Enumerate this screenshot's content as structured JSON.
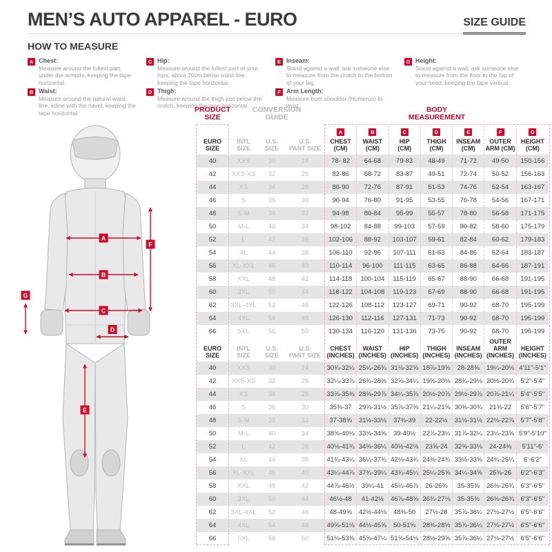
{
  "colors": {
    "accent_red": "#cf0a2c",
    "row_shade": "#e4e4e4",
    "muted_gray": "#b5b5b5",
    "text_dark": "#3a3a3a"
  },
  "header": {
    "title": "MEN’S AUTO APPAREL - EURO",
    "size_guide_label": "SIZE GUIDE"
  },
  "how_to_measure": {
    "title": "HOW TO MEASURE",
    "items": [
      {
        "letter": "A",
        "name": "Chest:",
        "text": "Measure around the fullest part, under the armpits, keeping the tape horizontal.",
        "column": 0
      },
      {
        "letter": "B",
        "name": "Waist:",
        "text": "Measure around the natural waist line, inline with the navel, keeping the tape horizontal.",
        "column": 0
      },
      {
        "letter": "C",
        "name": "Hip:",
        "text": "Measure around the fullest part of your hips, about 20cm below waist line, keeping the tape horizontal.",
        "column": 1
      },
      {
        "letter": "D",
        "name": "Thigh:",
        "text": "Measure around the thigh just below the crotch, keeping the tape horizontal.",
        "column": 1
      },
      {
        "letter": "E",
        "name": "Inseam:",
        "text": "Stand against a wall, ask someone else to measure from the crotch to the bottom of your leg.",
        "column": 2
      },
      {
        "letter": "F",
        "name": "Arm Length:",
        "text": "Measure from shoulder (Humerus) to wrist.",
        "column": 2
      },
      {
        "letter": "G",
        "name": "Height:",
        "text": "Stand against a wall, ask someone else to measure from the floor to the top of your head, keeping the tape vertical.",
        "column": 3
      }
    ]
  },
  "figure": {
    "labels": [
      "A",
      "B",
      "C",
      "D",
      "E",
      "F",
      "G"
    ]
  },
  "table": {
    "group_headers": [
      {
        "label": "PRODUCT\nSIZE",
        "style": "red",
        "span": 1
      },
      {
        "label": "CONVERSION\nGUIDE",
        "style": "gray",
        "span": 3
      },
      {
        "label": "BODY\nMEASUREMENT",
        "style": "red",
        "span": 7
      }
    ],
    "basic_columns": [
      {
        "label": "EURO\nSIZE",
        "style": "dark"
      },
      {
        "label": "INTL\nSIZE",
        "style": "light"
      },
      {
        "label": "U.S.\nSIZE",
        "style": "light"
      },
      {
        "label": "U.S.\nPANT SIZE",
        "style": "light"
      }
    ],
    "measure_columns": [
      {
        "letter": "A",
        "cm": "CHEST\n(CM)",
        "inches": "CHEST\n(INCHES)"
      },
      {
        "letter": "B",
        "cm": "WAIST\n(CM)",
        "inches": "WAIST\n(INCHES)"
      },
      {
        "letter": "C",
        "cm": "HIP\n(CM)",
        "inches": "HIP\n(INCHES)"
      },
      {
        "letter": "D",
        "cm": "THIGH\n(CM)",
        "inches": "THIGH\n(INCHES)"
      },
      {
        "letter": "E",
        "cm": "INSEAM\n(CM)",
        "inches": "INSEAM\n(INCHES)"
      },
      {
        "letter": "F",
        "cm": "OUTER\nARM (CM)",
        "inches": "OUTER ARM\n(INCHES)"
      },
      {
        "letter": "G",
        "cm": "HEIGHT\n(CM)",
        "inches": "HEIGHT\n(INCHES)"
      }
    ],
    "rows_cm": [
      [
        "40",
        "XXS",
        "30",
        "24",
        "78- 82",
        "64-68",
        "79-83",
        "48-49",
        "71-72",
        "49-50",
        "150-156"
      ],
      [
        "42",
        "XXS-XS",
        "32",
        "26",
        "82-86",
        "68-72",
        "83-87",
        "49-51",
        "72-74",
        "50-52",
        "156-163"
      ],
      [
        "44",
        "XS",
        "34",
        "28",
        "86-90",
        "72-76",
        "87-91",
        "51-53",
        "74-76",
        "52-54",
        "163-167"
      ],
      [
        "46",
        "S",
        "36",
        "30",
        "90-94",
        "76-80",
        "91-95",
        "53-55",
        "76-78",
        "54-56",
        "167-171"
      ],
      [
        "48",
        "S-M",
        "38",
        "32",
        "94-98",
        "80-84",
        "95-99",
        "55-57",
        "78-80",
        "56-58",
        "171-175"
      ],
      [
        "50",
        "M-L",
        "40",
        "34",
        "98-102",
        "84-88",
        "99-103",
        "57-59",
        "80-82",
        "58-60",
        "175-179"
      ],
      [
        "52",
        "L",
        "42",
        "36",
        "102-106",
        "88-92",
        "103-107",
        "59-61",
        "82-84",
        "60-62",
        "179-183"
      ],
      [
        "54",
        "XL",
        "44",
        "38",
        "106-110",
        "92-96",
        "107-111",
        "61-63",
        "84-86",
        "62-64",
        "183-187"
      ],
      [
        "56",
        "XL-XXL",
        "46",
        "40",
        "110-114",
        "96-100",
        "111-115",
        "63-65",
        "86-88",
        "64-66",
        "187-191"
      ],
      [
        "58",
        "XXL",
        "48",
        "42",
        "114-118",
        "100-104",
        "115-119",
        "65-67",
        "88-90",
        "66-68",
        "191-195"
      ],
      [
        "60",
        "3XL",
        "50",
        "44",
        "118-122",
        "104-108",
        "119-123",
        "67-69",
        "88-90",
        "66-68",
        "191-195"
      ],
      [
        "62",
        "3XL-4XL",
        "52",
        "46",
        "122-126",
        "108-112",
        "123-127",
        "69-71",
        "90-92",
        "68-70",
        "195-199"
      ],
      [
        "64",
        "4XL",
        "54",
        "48",
        "126-130",
        "112-116",
        "127-131",
        "71-73",
        "90-92",
        "68-70",
        "195-199"
      ],
      [
        "66",
        "5XL",
        "56",
        "50",
        "130-134",
        "116-120",
        "131-136",
        "73-75",
        "90-92",
        "68-70",
        "195-199"
      ]
    ],
    "rows_inches": [
      [
        "40",
        "XXS",
        "30",
        "24",
        "30¾-32¼",
        "25¼-26¾",
        "31⅛-32⅝",
        "18⅞-19⅝",
        "28-28⅜",
        "19¼-20⅛",
        "4'11\"-5'1\""
      ],
      [
        "42",
        "XXS-XS",
        "32",
        "26",
        "32¼-33⅞",
        "26¾-28⅜",
        "32⅝-34¼",
        "19⅝-20⅛",
        "28¾-29⅛",
        "20⅛-20¾",
        "5'2\"-5'4\""
      ],
      [
        "44",
        "XS",
        "34",
        "28",
        "33⅞-35⅜",
        "28⅜-29⅞",
        "34¼-35⅞",
        "20½-20⅞",
        "29½-29⅞",
        "20⅞-21¼",
        "5'4\"-5'5\""
      ],
      [
        "46",
        "S",
        "36",
        "30",
        "35⅜-37",
        "29⅞-31½",
        "35⅞-37⅜",
        "21¼-21⅝",
        "30⅜-30¾",
        "21⅝-22",
        "5'6\"-5'7\""
      ],
      [
        "48",
        "S-M",
        "38",
        "32",
        "37-38⅝",
        "31½-33⅛",
        "37⅜-39",
        "22-22½",
        "31⅛-31½",
        "22⅛-22⅞",
        "5'7\"-5'8\""
      ],
      [
        "50",
        "M-L",
        "40",
        "34",
        "38⅝-40⅛",
        "33⅛-34⅝",
        "39-40½",
        "22⅞-23¼",
        "31⅞-32¼",
        "23¼-23⅝",
        "5'9\"-5'10\""
      ],
      [
        "52",
        "L",
        "42",
        "36",
        "40⅛-41¾",
        "34⅝-36¼",
        "40½-42⅛",
        "23⅝-24",
        "32⅝-33⅛",
        "24-24⅜",
        "5'11\"-6'"
      ],
      [
        "54",
        "XL",
        "44",
        "38",
        "41¾-43¼",
        "36¼-37¾",
        "42⅛-43¾",
        "24⅜-24¾",
        "33⅛-33⅝",
        "24¾-25¼",
        "6'-6'2\""
      ],
      [
        "56",
        "XL-XXL",
        "46",
        "40",
        "43¼-44⅞",
        "37¾-39¼",
        "43¾-45¼",
        "25¼-25⅝",
        "34¼-34⅝",
        "25⅝-26",
        "6'2\"-6'3\""
      ],
      [
        "58",
        "XXL",
        "48",
        "42",
        "44⅞-46½",
        "39¼-41",
        "45¼-46⅞",
        "26-26⅜",
        "35-35⅜",
        "26⅜-26¾",
        "6'3\"-6'5\""
      ],
      [
        "60",
        "3XL",
        "50",
        "44",
        "46½-48",
        "41-42½",
        "46⅞-48⅜",
        "26¾-27⅛",
        "35-35⅜",
        "26⅜-26¾",
        "6'3\"-6'5\""
      ],
      [
        "62",
        "3XL-4XL",
        "52",
        "46",
        "48-49⅝",
        "42½-44⅛",
        "48⅜-50",
        "27½-28",
        "35⅞-36¼",
        "27⅛-27½",
        "6'5\"-6'6\""
      ],
      [
        "64",
        "4XL",
        "54",
        "48",
        "49⅝-51⅛",
        "44⅛-45⅝",
        "50-51⅝",
        "28⅜-28½",
        "35⅞-36¼",
        "27⅛-27½",
        "6'5\"-6'6\""
      ],
      [
        "66",
        "5XL",
        "56",
        "50",
        "51⅛-53⅜",
        "45⅝-47¼",
        "51⅝-54⅛",
        "28½-29⅝",
        "35⅞-36¼",
        "27⅛-27½",
        "6'5\"-6'6\""
      ]
    ]
  }
}
